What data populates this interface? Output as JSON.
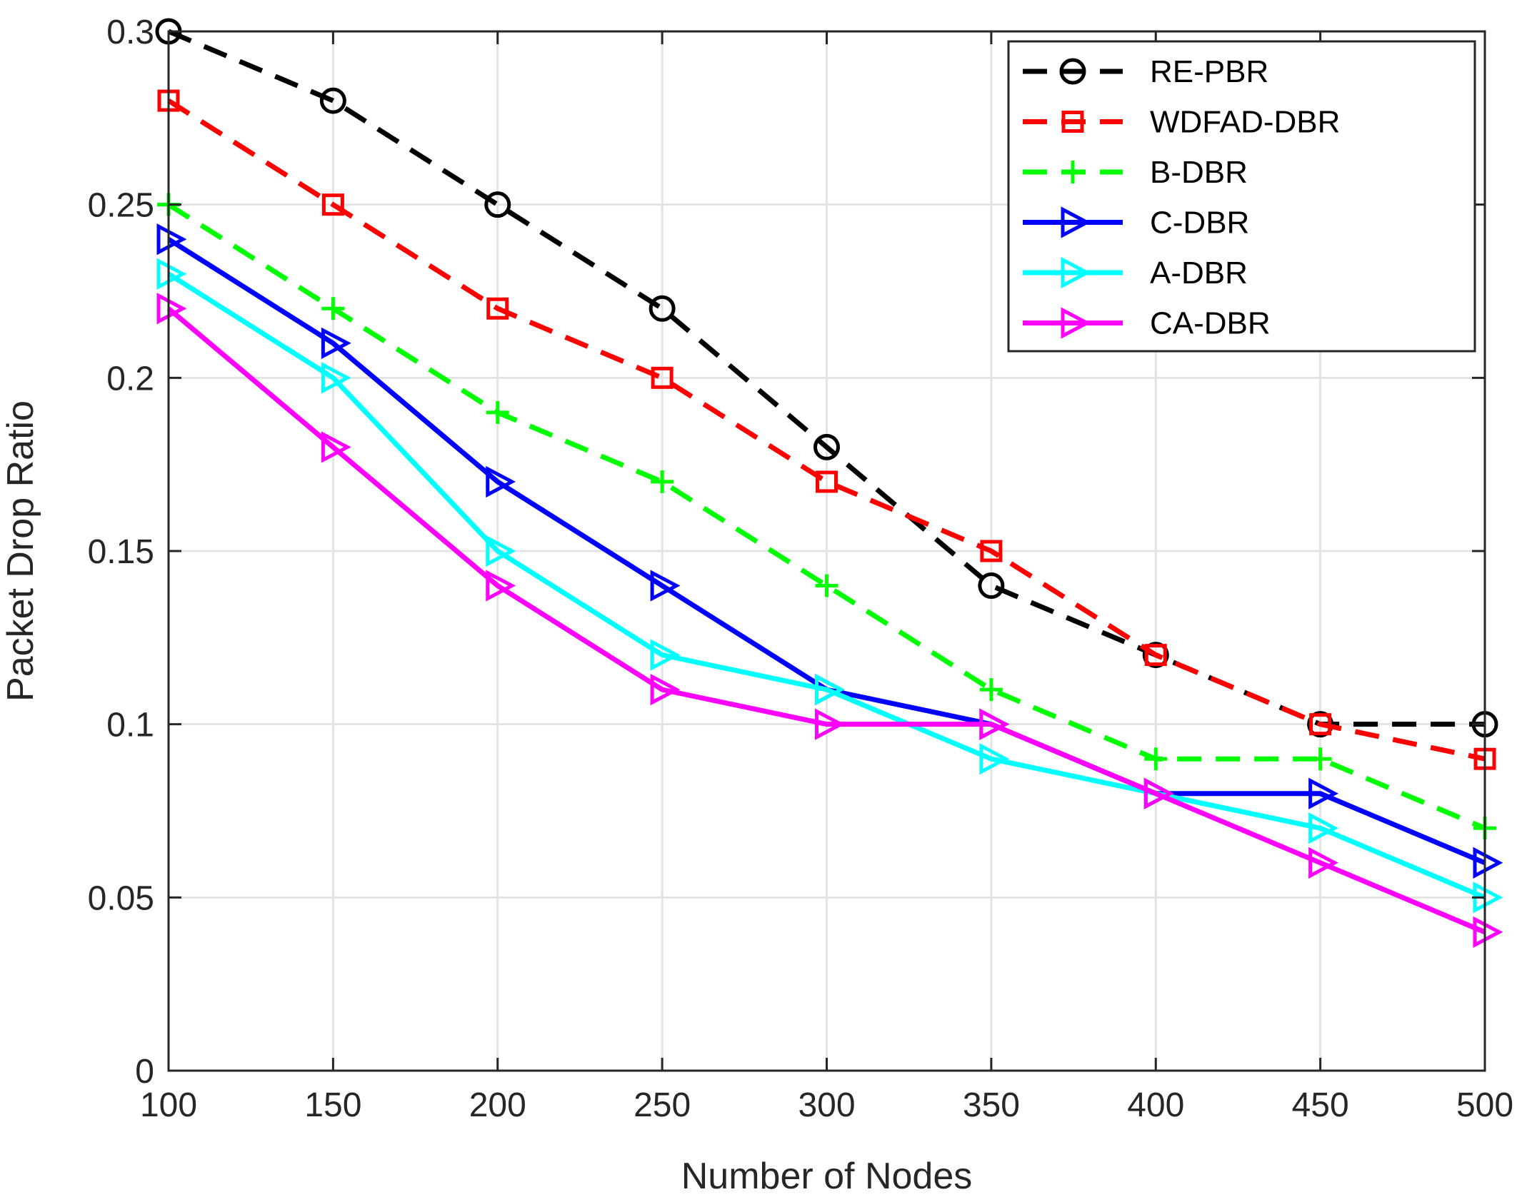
{
  "chart_data": {
    "type": "line",
    "title": "",
    "xlabel": "Number of Nodes",
    "ylabel": "Packet Drop Ratio",
    "x": [
      100,
      150,
      200,
      250,
      300,
      350,
      400,
      450,
      500
    ],
    "xlim": [
      100,
      500
    ],
    "ylim": [
      0,
      0.3
    ],
    "xticks": [
      100,
      150,
      200,
      250,
      300,
      350,
      400,
      450,
      500
    ],
    "yticks": [
      0,
      0.05,
      0.1,
      0.15,
      0.2,
      0.25,
      0.3
    ],
    "xtick_labels": [
      "100",
      "150",
      "200",
      "250",
      "300",
      "350",
      "400",
      "450",
      "500"
    ],
    "ytick_labels": [
      "0",
      "0.05",
      "0.1",
      "0.15",
      "0.2",
      "0.25",
      "0.3"
    ],
    "grid": true,
    "legend_position": "top-right",
    "series": [
      {
        "name": "RE-PBR",
        "color": "#000000",
        "dash": "dashed",
        "marker": "circle",
        "values": [
          0.3,
          0.28,
          0.25,
          0.22,
          0.18,
          0.14,
          0.12,
          0.1,
          0.1
        ]
      },
      {
        "name": "WDFAD-DBR",
        "color": "#ff0000",
        "dash": "dashed",
        "marker": "square",
        "values": [
          0.28,
          0.25,
          0.22,
          0.2,
          0.17,
          0.15,
          0.12,
          0.1,
          0.09
        ]
      },
      {
        "name": "B-DBR",
        "color": "#00ff00",
        "dash": "dashed",
        "marker": "plus",
        "values": [
          0.25,
          0.22,
          0.19,
          0.17,
          0.14,
          0.11,
          0.09,
          0.09,
          0.07
        ]
      },
      {
        "name": "C-DBR",
        "color": "#0000ff",
        "dash": "solid",
        "marker": "triangle-right",
        "values": [
          0.24,
          0.21,
          0.17,
          0.14,
          0.11,
          0.1,
          0.08,
          0.08,
          0.06
        ]
      },
      {
        "name": "A-DBR",
        "color": "#00ffff",
        "dash": "solid",
        "marker": "triangle-right",
        "values": [
          0.23,
          0.2,
          0.15,
          0.12,
          0.11,
          0.09,
          0.08,
          0.07,
          0.05
        ]
      },
      {
        "name": "CA-DBR",
        "color": "#ff00ff",
        "dash": "solid",
        "marker": "triangle-right",
        "values": [
          0.22,
          0.18,
          0.14,
          0.11,
          0.1,
          0.1,
          0.08,
          0.06,
          0.04
        ]
      }
    ]
  }
}
